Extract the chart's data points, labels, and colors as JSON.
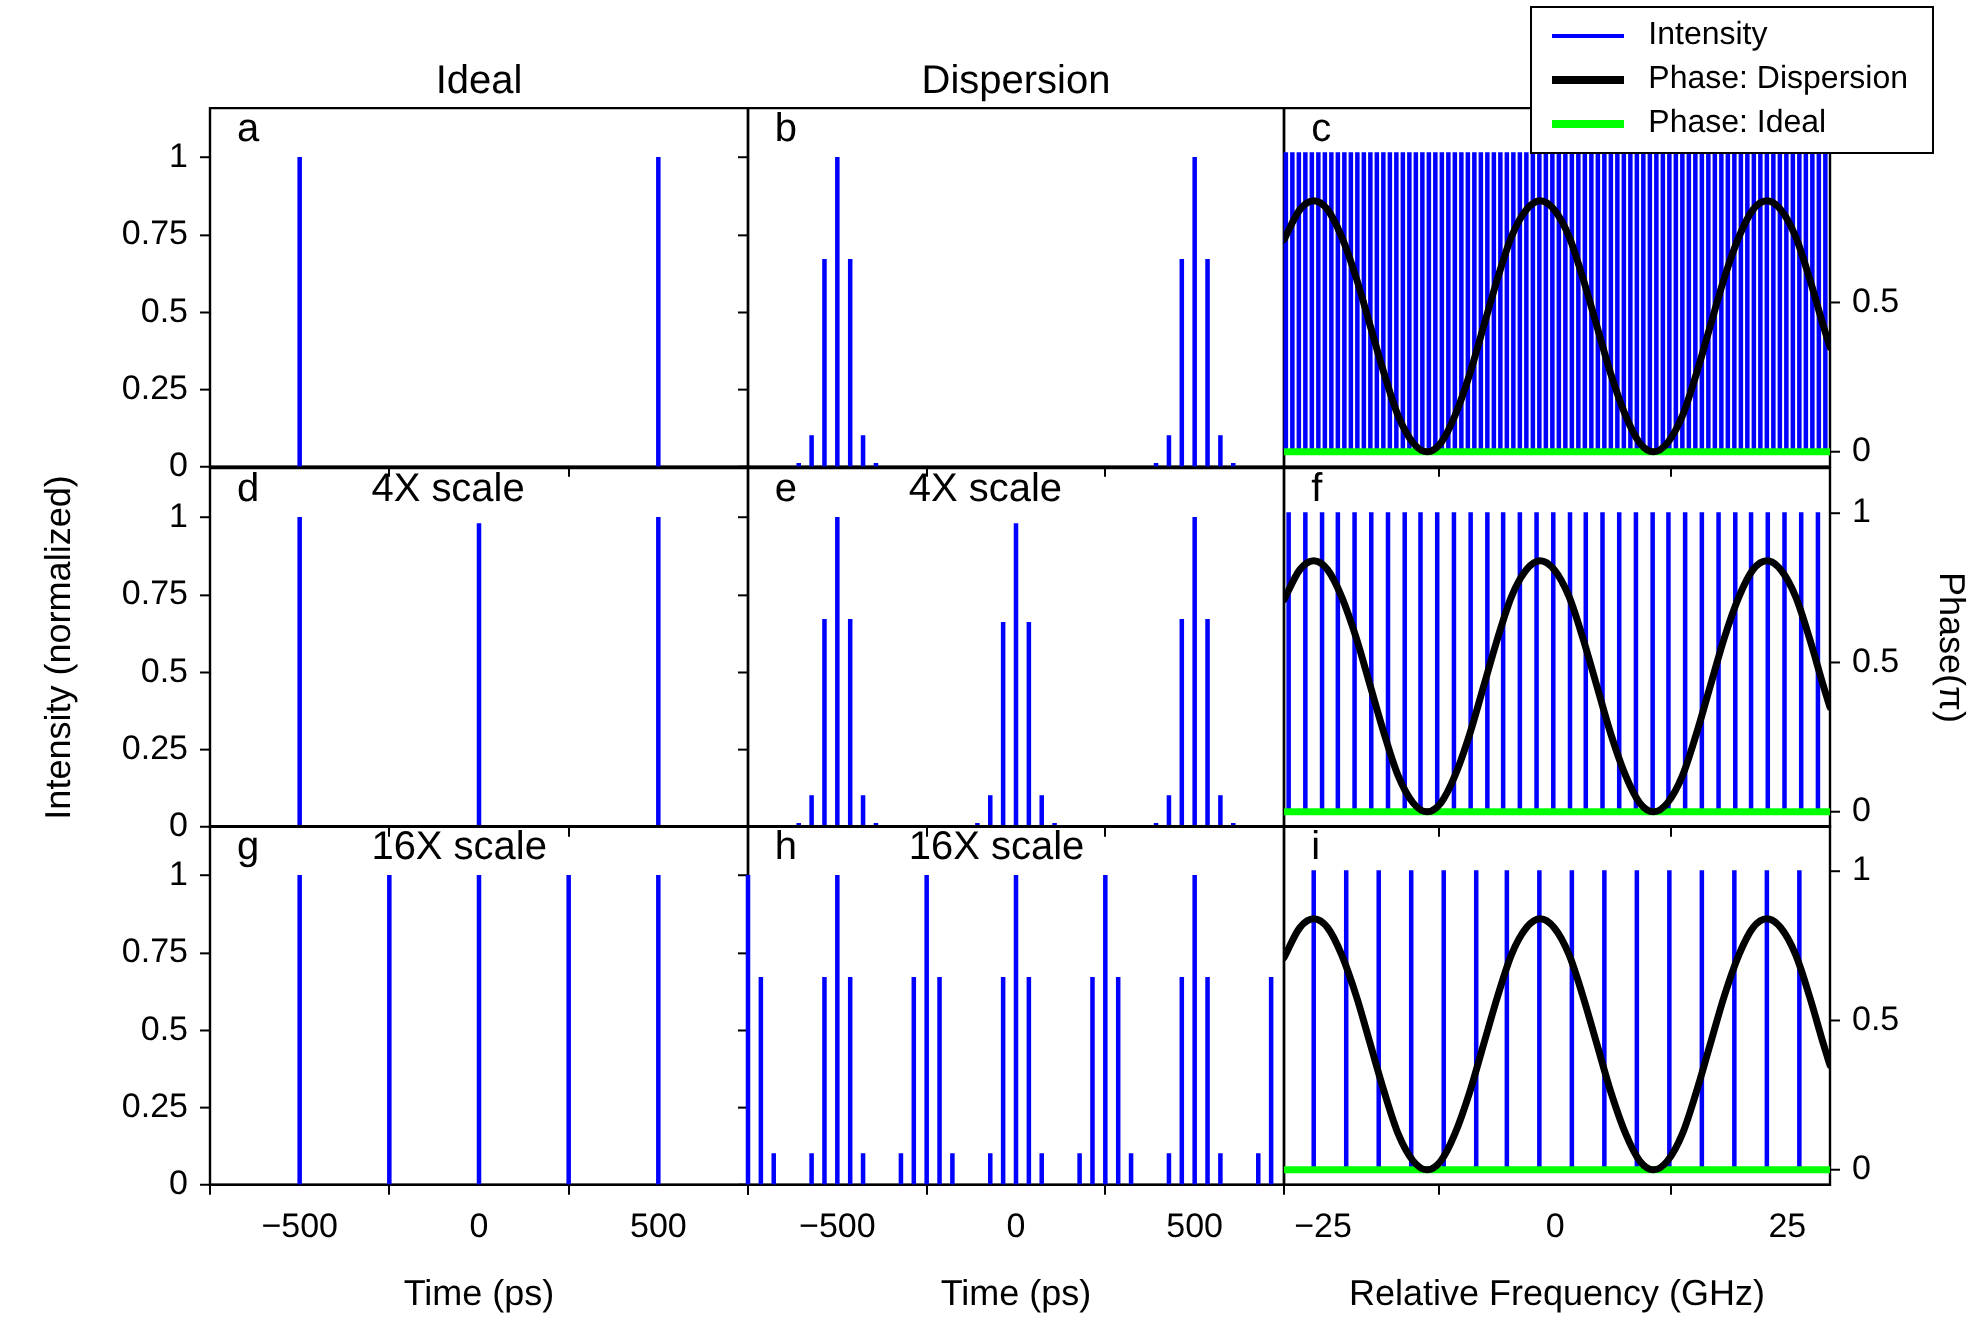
{
  "chart_data": [
    {
      "type": "bar",
      "title": "Ideal",
      "annotations": [
        "a"
      ],
      "series": [
        {
          "color": "#0000ff",
          "x": [
            -500,
            500
          ],
          "values": [
            1,
            1
          ]
        }
      ],
      "xlim": [
        -750,
        750
      ],
      "xticks": [
        -500,
        0,
        500
      ],
      "ylim": [
        0,
        1.16
      ],
      "yticks": [
        0,
        0.25,
        0.5,
        0.75,
        1
      ],
      "tick_labels": "y"
    },
    {
      "type": "bar",
      "title": "Dispersion",
      "annotations": [
        "b"
      ],
      "series": [
        {
          "color": "#0000ff",
          "x": [
            -608,
            -572,
            -536,
            -500,
            -464,
            -428,
            -392,
            392,
            428,
            464,
            500,
            536,
            572,
            608
          ],
          "values": [
            0.01,
            0.1,
            0.67,
            1,
            0.67,
            0.1,
            0.01,
            0.01,
            0.1,
            0.67,
            1,
            0.67,
            0.1,
            0.01
          ]
        }
      ],
      "xlim": [
        -750,
        750
      ],
      "xticks": [
        -500,
        0,
        500
      ],
      "ylim": [
        0,
        1.16
      ],
      "yticks": [
        0,
        0.25,
        0.5,
        0.75,
        1
      ],
      "tick_labels": false
    },
    {
      "type": "bar",
      "annotations": [
        "c"
      ],
      "legend": "top right",
      "series": [
        {
          "name": "Intensity",
          "axis": "y2",
          "color": "#0000ff",
          "x": [
            -29,
            -28.3,
            -27.6,
            -26.9,
            -26.2,
            -25.5,
            -24.8,
            -24.1,
            -23.4,
            -22.7,
            -22,
            -21.3,
            -20.6,
            -19.9,
            -19.2,
            -18.5,
            -17.8,
            -17.1,
            -16.4,
            -15.7,
            -15,
            -14.3,
            -13.6,
            -12.9,
            -12.2,
            -11.5,
            -10.8,
            -10.1,
            -9.4,
            -8.7,
            -8,
            -7.3,
            -6.6,
            -5.9,
            -5.2,
            -4.5,
            -3.8,
            -3.1,
            -2.4,
            -1.7,
            -1,
            -0.3,
            0.4,
            1.1,
            1.8,
            2.5,
            3.2,
            3.9,
            4.6,
            5.3,
            6,
            6.7,
            7.4,
            8.1,
            8.8,
            9.5,
            10.2,
            10.9,
            11.6,
            12.3,
            13,
            13.7,
            14.4,
            15.1,
            15.8,
            16.5,
            17.2,
            17.9,
            18.6,
            19.3,
            20,
            20.7,
            21.4,
            22.1,
            22.8,
            23.5,
            24.2,
            24.9,
            25.6,
            26.3,
            27,
            27.7,
            28.4,
            29.1
          ],
          "values": [
            1,
            1,
            1,
            1,
            1,
            1,
            1,
            1,
            1,
            1,
            1,
            1,
            1,
            1,
            1,
            1,
            1,
            1,
            1,
            1,
            1,
            1,
            1,
            1,
            1,
            1,
            1,
            1,
            1,
            1,
            1,
            1,
            1,
            1,
            1,
            1,
            1,
            1,
            1,
            1,
            1,
            1,
            1,
            1,
            1,
            1,
            1,
            1,
            1,
            1,
            1,
            1,
            1,
            1,
            1,
            1,
            1,
            1,
            1,
            1,
            1,
            1,
            1,
            1,
            1,
            1,
            1,
            1,
            1,
            1,
            1,
            1,
            1,
            1,
            1,
            1,
            1,
            1,
            1,
            1,
            1,
            1,
            1,
            1
          ]
        },
        {
          "name": "Phase: Dispersion",
          "type": "line",
          "axis": "y2",
          "color": "#000000",
          "x": [
            -29.2,
            -27.5,
            -26,
            -24.5,
            -23,
            -21.4,
            -19.9,
            -18.4,
            -16.9,
            -15.3,
            -13.8,
            -12.3,
            -10.8,
            -9.2,
            -7.7,
            -6.2,
            -4.7,
            -3.1,
            -1.6,
            -0.1,
            1.5,
            3,
            4.5,
            6,
            7.6,
            9.1,
            10.6,
            12.1,
            13.7,
            15.2,
            16.7,
            18.2,
            19.8,
            21.3,
            22.8,
            24.3,
            25.9,
            27.4,
            28.9,
            29.6
          ],
          "values": [
            0.71,
            0.81,
            0.84,
            0.81,
            0.72,
            0.58,
            0.42,
            0.26,
            0.12,
            0.03,
            0,
            0.03,
            0.12,
            0.26,
            0.42,
            0.58,
            0.72,
            0.81,
            0.84,
            0.81,
            0.72,
            0.58,
            0.42,
            0.26,
            0.12,
            0.03,
            0,
            0.03,
            0.12,
            0.26,
            0.42,
            0.58,
            0.72,
            0.81,
            0.84,
            0.81,
            0.72,
            0.58,
            0.42,
            0.35
          ]
        },
        {
          "name": "Phase: Ideal",
          "type": "line",
          "axis": "y2",
          "color": "#00ff00",
          "x": [
            -29.2,
            29.6
          ],
          "values": [
            0,
            0
          ]
        }
      ],
      "xlim": [
        -29.2,
        29.6
      ],
      "xticks": [
        -25,
        0,
        25
      ],
      "y2lim": [
        -0.05,
        1.15
      ],
      "y2ticks": [
        0,
        0.5
      ],
      "tick_labels": "y"
    },
    {
      "type": "bar",
      "annotations": [
        "d",
        "4X scale"
      ],
      "ylabel": "Intensity (normalized)",
      "series": [
        {
          "color": "#0000ff",
          "x": [
            -500,
            0,
            500
          ],
          "values": [
            1,
            0.98,
            1
          ]
        }
      ],
      "xlim": [
        -750,
        750
      ],
      "xticks": [
        -500,
        0,
        500
      ],
      "ylim": [
        0,
        1.16
      ],
      "yticks": [
        0,
        0.25,
        0.5,
        0.75,
        1
      ],
      "tick_labels": "y"
    },
    {
      "type": "bar",
      "annotations": [
        "e",
        "4X scale"
      ],
      "series": [
        {
          "color": "#0000ff",
          "x": [
            -608,
            -572,
            -536,
            -500,
            -464,
            -428,
            -392,
            -108,
            -72,
            -36,
            0,
            36,
            72,
            108,
            392,
            428,
            464,
            500,
            536,
            572,
            608
          ],
          "values": [
            0.01,
            0.1,
            0.67,
            1,
            0.67,
            0.1,
            0.01,
            0.01,
            0.1,
            0.66,
            0.98,
            0.66,
            0.1,
            0.01,
            0.01,
            0.1,
            0.67,
            1,
            0.67,
            0.1,
            0.01
          ]
        }
      ],
      "xlim": [
        -750,
        750
      ],
      "xticks": [
        -500,
        0,
        500
      ],
      "ylim": [
        0,
        1.16
      ],
      "yticks": [
        0,
        0.25,
        0.5,
        0.75,
        1
      ],
      "tick_labels": false
    },
    {
      "type": "bar",
      "annotations": [
        "f"
      ],
      "y2label": "Phase(π)",
      "series": [
        {
          "axis": "y2",
          "color": "#0000ff",
          "x": [
            -28.7,
            -26.9,
            -25.1,
            -23.4,
            -21.6,
            -19.8,
            -18,
            -16.2,
            -14.5,
            -12.7,
            -10.9,
            -9.1,
            -7.3,
            -5.6,
            -3.8,
            -2,
            -0.2,
            1.6,
            3.3,
            5.1,
            6.9,
            8.7,
            10.5,
            12.2,
            14,
            15.8,
            17.6,
            19.4,
            21.1,
            22.9,
            24.7,
            26.5,
            28.3
          ],
          "values": [
            1,
            1,
            1,
            1,
            1,
            1,
            1,
            1,
            1,
            1,
            1,
            1,
            1,
            1,
            1,
            1,
            1,
            1,
            1,
            1,
            1,
            1,
            1,
            1,
            1,
            1,
            1,
            1,
            1,
            1,
            1,
            1,
            1
          ]
        },
        {
          "type": "line",
          "axis": "y2",
          "color": "#000000",
          "x": [
            -29.2,
            -27.5,
            -26,
            -24.5,
            -23,
            -21.4,
            -19.9,
            -18.4,
            -16.9,
            -15.3,
            -13.8,
            -12.3,
            -10.8,
            -9.2,
            -7.7,
            -6.2,
            -4.7,
            -3.1,
            -1.6,
            -0.1,
            1.5,
            3,
            4.5,
            6,
            7.6,
            9.1,
            10.6,
            12.1,
            13.7,
            15.2,
            16.7,
            18.2,
            19.8,
            21.3,
            22.8,
            24.3,
            25.9,
            27.4,
            28.9,
            29.6
          ],
          "values": [
            0.71,
            0.81,
            0.84,
            0.81,
            0.72,
            0.58,
            0.42,
            0.26,
            0.12,
            0.03,
            0,
            0.03,
            0.12,
            0.26,
            0.42,
            0.58,
            0.72,
            0.81,
            0.84,
            0.81,
            0.72,
            0.58,
            0.42,
            0.26,
            0.12,
            0.03,
            0,
            0.03,
            0.12,
            0.26,
            0.42,
            0.58,
            0.72,
            0.81,
            0.84,
            0.81,
            0.72,
            0.58,
            0.42,
            0.35
          ]
        },
        {
          "type": "line",
          "axis": "y2",
          "color": "#00ff00",
          "x": [
            -29.2,
            29.6
          ],
          "values": [
            0,
            0
          ]
        }
      ],
      "xlim": [
        -29.2,
        29.6
      ],
      "xticks": [
        -25,
        0,
        25
      ],
      "y2lim": [
        -0.05,
        1.15
      ],
      "y2ticks": [
        0,
        0.5,
        1
      ],
      "tick_labels": "y"
    },
    {
      "type": "bar",
      "annotations": [
        "g",
        "16X scale"
      ],
      "xlabel": "Time (ps)",
      "series": [
        {
          "color": "#0000ff",
          "x": [
            -500,
            -250,
            0,
            250,
            500
          ],
          "values": [
            1,
            1,
            1,
            1,
            1
          ]
        }
      ],
      "xlim": [
        -750,
        750
      ],
      "xticks": [
        -500,
        0,
        500
      ],
      "ylim": [
        0,
        1.16
      ],
      "yticks": [
        0,
        0.25,
        0.5,
        0.75,
        1
      ]
    },
    {
      "type": "bar",
      "annotations": [
        "h",
        "16X scale"
      ],
      "xlabel": "Time (ps)",
      "series": [
        {
          "color": "#0000ff",
          "x": [
            -750,
            -714,
            -678,
            -572,
            -536,
            -500,
            -464,
            -428,
            -322,
            -286,
            -250,
            -214,
            -178,
            -72,
            -36,
            0,
            36,
            72,
            178,
            214,
            250,
            286,
            322,
            428,
            464,
            500,
            536,
            572,
            678,
            714
          ],
          "values": [
            1,
            0.67,
            0.1,
            0.1,
            0.67,
            1,
            0.67,
            0.1,
            0.1,
            0.67,
            1,
            0.67,
            0.1,
            0.1,
            0.67,
            1,
            0.67,
            0.1,
            0.1,
            0.67,
            1,
            0.67,
            0.1,
            0.1,
            0.67,
            1,
            0.67,
            0.1,
            0.1,
            0.67
          ]
        }
      ],
      "xlim": [
        -750,
        750
      ],
      "xticks": [
        -500,
        0,
        500
      ],
      "ylim": [
        0,
        1.16
      ],
      "yticks": [
        0,
        0.25,
        0.5,
        0.75,
        1
      ],
      "tick_labels": "x"
    },
    {
      "type": "bar",
      "annotations": [
        "i"
      ],
      "xlabel": "Relative Frequency (GHz)",
      "series": [
        {
          "axis": "y2",
          "color": "#0000ff",
          "x": [
            -26,
            -22.5,
            -19,
            -15.5,
            -12,
            -8.5,
            -5.2,
            -1.7,
            1.8,
            5.3,
            8.8,
            12.3,
            15.8,
            19.3,
            22.8,
            26.3
          ],
          "values": [
            1,
            1,
            1,
            1,
            1,
            1,
            1,
            1,
            1,
            1,
            1,
            1,
            1,
            1,
            1,
            1
          ]
        },
        {
          "type": "line",
          "axis": "y2",
          "color": "#000000",
          "x": [
            -29.2,
            -27.5,
            -26,
            -24.5,
            -23,
            -21.4,
            -19.9,
            -18.4,
            -16.9,
            -15.3,
            -13.8,
            -12.3,
            -10.8,
            -9.2,
            -7.7,
            -6.2,
            -4.7,
            -3.1,
            -1.6,
            -0.1,
            1.5,
            3,
            4.5,
            6,
            7.6,
            9.1,
            10.6,
            12.1,
            13.7,
            15.2,
            16.7,
            18.2,
            19.8,
            21.3,
            22.8,
            24.3,
            25.9,
            27.4,
            28.9,
            29.6
          ],
          "values": [
            0.71,
            0.81,
            0.84,
            0.81,
            0.72,
            0.58,
            0.42,
            0.26,
            0.12,
            0.03,
            0,
            0.03,
            0.12,
            0.26,
            0.42,
            0.58,
            0.72,
            0.81,
            0.84,
            0.81,
            0.72,
            0.58,
            0.42,
            0.26,
            0.12,
            0.03,
            0,
            0.03,
            0.12,
            0.26,
            0.42,
            0.58,
            0.72,
            0.81,
            0.84,
            0.81,
            0.72,
            0.58,
            0.42,
            0.35
          ]
        },
        {
          "type": "line",
          "axis": "y2",
          "color": "#00ff00",
          "x": [
            -29.2,
            29.6
          ],
          "values": [
            0,
            0
          ]
        }
      ],
      "xlim": [
        -29.2,
        29.6
      ],
      "xticks": [
        -25,
        0,
        25
      ],
      "y2lim": [
        -0.05,
        1.15
      ],
      "y2ticks": [
        0,
        0.5,
        1
      ]
    }
  ]
}
